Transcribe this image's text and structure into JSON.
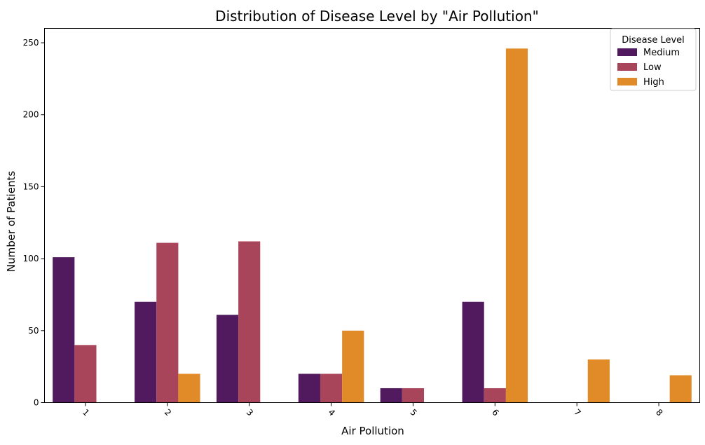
{
  "chart_data": {
    "type": "bar",
    "title": "Distribution of Disease Level by \"Air Pollution\"",
    "xlabel": "Air Pollution",
    "ylabel": "Number of Patients",
    "categories": [
      "1",
      "2",
      "3",
      "4",
      "5",
      "6",
      "7",
      "8"
    ],
    "series": [
      {
        "name": "Medium",
        "color": "#521a5e",
        "values": [
          101,
          70,
          61,
          20,
          10,
          70,
          0,
          0
        ]
      },
      {
        "name": "Low",
        "color": "#a9455b",
        "values": [
          40,
          111,
          112,
          20,
          10,
          10,
          0,
          0
        ]
      },
      {
        "name": "High",
        "color": "#e08b27",
        "values": [
          0,
          20,
          0,
          50,
          0,
          246,
          30,
          19
        ]
      }
    ],
    "ylim": [
      0,
      260
    ],
    "yticks": [
      0,
      50,
      100,
      150,
      200,
      250
    ],
    "grid": false,
    "legend": {
      "title": "Disease Level",
      "placement": "top-right"
    },
    "xtick_rotation": "45"
  }
}
